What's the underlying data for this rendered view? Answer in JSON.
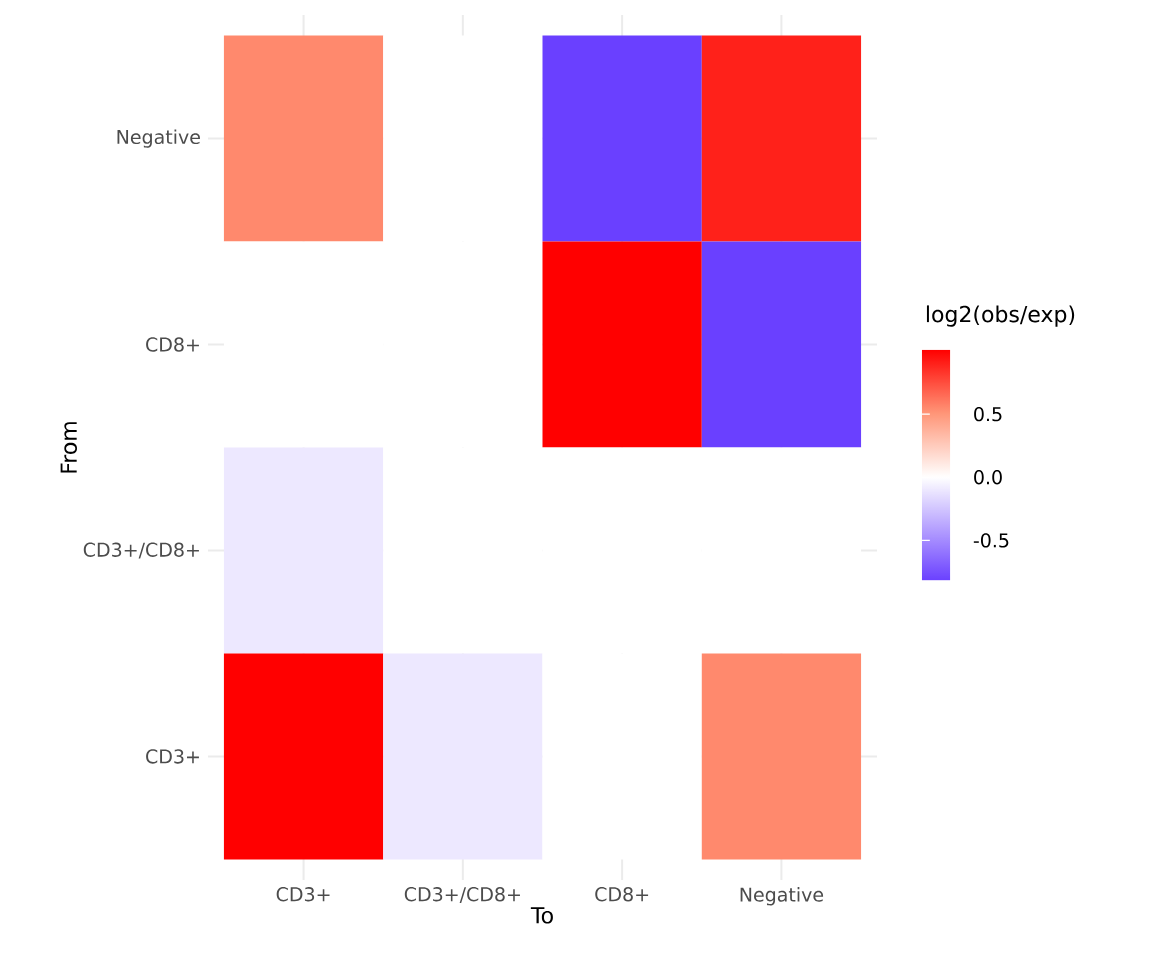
{
  "chart_data": {
    "type": "heatmap",
    "xlabel": "To",
    "ylabel": "From",
    "clabel": "log2(obs/exp)",
    "categories": [
      "CD3+",
      "CD3+/CD8+",
      "CD8+",
      "Negative"
    ],
    "y_categories": [
      "Negative",
      "CD8+",
      "CD3+/CD8+",
      "CD3+"
    ],
    "cells": [
      [
        0.55,
        0,
        -0.82,
        0.9
      ],
      [
        0,
        0,
        1.01,
        -0.82
      ],
      [
        -0.1,
        0,
        0,
        0
      ],
      [
        1.01,
        -0.1,
        0,
        0.55
      ]
    ],
    "clim": [
      -0.82,
      1.01
    ],
    "cticks": [
      -0.5,
      {
        "value": 0,
        "label": "0.0"
      },
      0.5
    ],
    "grid": true
  }
}
